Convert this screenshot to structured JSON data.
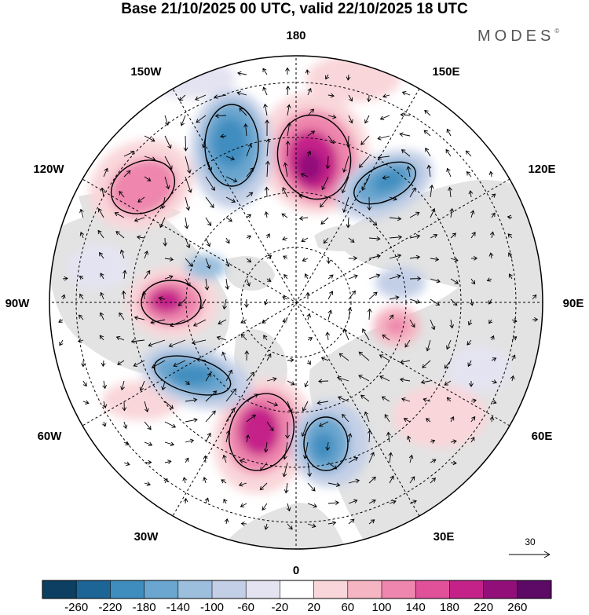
{
  "header": {
    "title": "Base 21/10/2025 00 UTC, valid 22/10/2025 18 UTC",
    "brand": "MODES",
    "brand_mark": "©"
  },
  "map": {
    "projection": "north-polar-stereographic",
    "longitude_labels": {
      "lon_180": "180",
      "lon_150e": "150E",
      "lon_120e": "120E",
      "lon_90e": "90E",
      "lon_60e": "60E",
      "lon_30e": "30E",
      "lon_0": "0",
      "lon_30w": "30W",
      "lon_60w": "60W",
      "lon_90w": "90W",
      "lon_120w": "120W",
      "lon_150w": "150W"
    },
    "wind_reference_label": "30"
  },
  "colorbar": {
    "tick_labels": [
      "-260",
      "-220",
      "-180",
      "-140",
      "-100",
      "-60",
      "-20",
      "20",
      "60",
      "100",
      "140",
      "180",
      "220",
      "260"
    ],
    "colors": [
      "#0c3f61",
      "#1d6596",
      "#3f8dbf",
      "#6aa6cf",
      "#9cbfde",
      "#c3cfe6",
      "#e4e3f1",
      "#ffffff",
      "#f9d6d9",
      "#f5b5c3",
      "#ee86ad",
      "#e0519a",
      "#c52289",
      "#920f7a",
      "#5c0a66"
    ]
  },
  "colors": {
    "land": "#e3e3e3",
    "ocean": "#ffffff",
    "graticule": "#000000"
  }
}
